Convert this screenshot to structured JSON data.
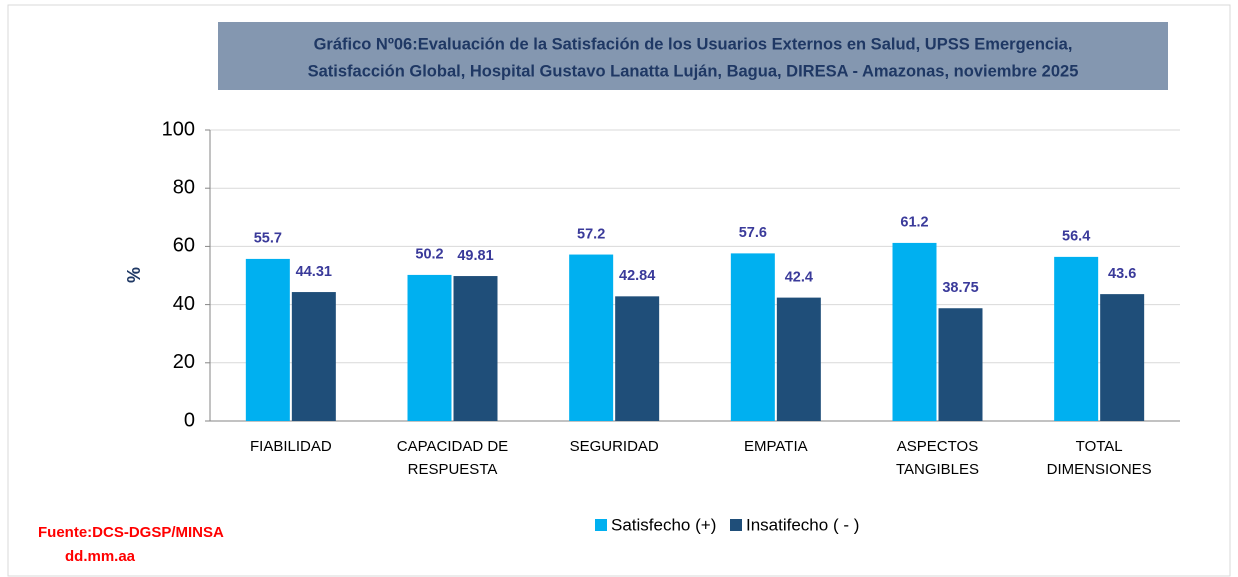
{
  "chart_data": {
    "type": "bar",
    "title": [
      "Gráfico Nº06:Evaluación de la Satisfación de los Usuarios Externos en Salud, UPSS Emergencia,",
      "Satisfacción Global, Hospital Gustavo Lanatta Luján, Bagua, DIRESA - Amazonas, noviembre 2025"
    ],
    "y_label": "%",
    "categories": [
      "FIABILIDAD",
      "CAPACIDAD DE RESPUESTA",
      "SEGURIDAD",
      "EMPATIA",
      "ASPECTOS TANGIBLES",
      "TOTAL DIMENSIONES"
    ],
    "series": [
      {
        "name": "Satisfecho (+)",
        "color": "#00b0f0",
        "values": [
          55.7,
          50.2,
          57.2,
          57.6,
          61.2,
          56.4
        ]
      },
      {
        "name": "Insatifecho ( - )",
        "color": "#1f4e79",
        "values": [
          44.31,
          49.81,
          42.84,
          42.4,
          38.75,
          43.6
        ]
      }
    ],
    "ylim": [
      0,
      100
    ],
    "yticks": [
      0,
      20,
      40,
      60,
      80,
      100
    ],
    "grid": true,
    "legend": "bottom",
    "source": [
      "Fuente:DCS-DGSP/MINSA",
      "dd.mm.aa"
    ]
  }
}
